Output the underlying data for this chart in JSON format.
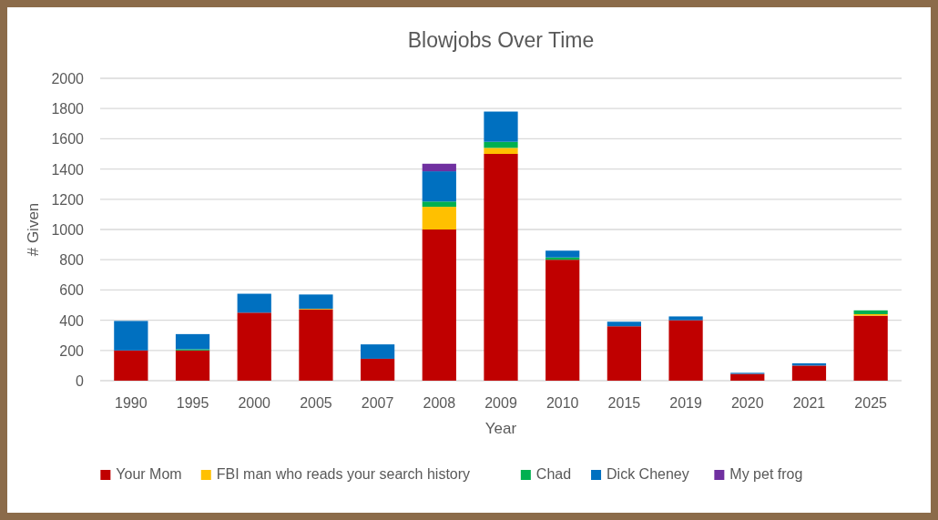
{
  "chart_data": {
    "type": "bar",
    "stacked": true,
    "title": "Blowjobs Over Time",
    "xlabel": "Year",
    "ylabel": "# Given",
    "categories": [
      "1990",
      "1995",
      "2000",
      "2005",
      "2007",
      "2008",
      "2009",
      "2010",
      "2015",
      "2019",
      "2020",
      "2021",
      "2025"
    ],
    "series": [
      {
        "name": "Your Mom",
        "color": "#c00000",
        "values": [
          200,
          200,
          450,
          470,
          145,
          1000,
          1500,
          800,
          360,
          400,
          45,
          100,
          430
        ]
      },
      {
        "name": "FBI man who reads your search history",
        "color": "#ffc000",
        "values": [
          0,
          0,
          null,
          5,
          0,
          150,
          40,
          0,
          null,
          0,
          0,
          0,
          10
        ]
      },
      {
        "name": "Chad",
        "color": "#00b050",
        "values": [
          0,
          8,
          0,
          0,
          0,
          35,
          40,
          15,
          0,
          0,
          0,
          0,
          25
        ]
      },
      {
        "name": "Dick Cheney",
        "color": "#0070c0",
        "values": [
          195,
          100,
          125,
          95,
          95,
          200,
          200,
          45,
          30,
          25,
          7,
          15,
          0
        ]
      },
      {
        "name": "My pet frog",
        "color": "#7030a0",
        "values": [
          0,
          0,
          0,
          0,
          0,
          50,
          0,
          0,
          0,
          0,
          0,
          0,
          0
        ]
      }
    ],
    "ylim": [
      0,
      2000
    ],
    "yticks": [
      0,
      200,
      400,
      600,
      800,
      1000,
      1200,
      1400,
      1600,
      1800,
      2000
    ],
    "grid": "y",
    "legend": "bottom"
  }
}
